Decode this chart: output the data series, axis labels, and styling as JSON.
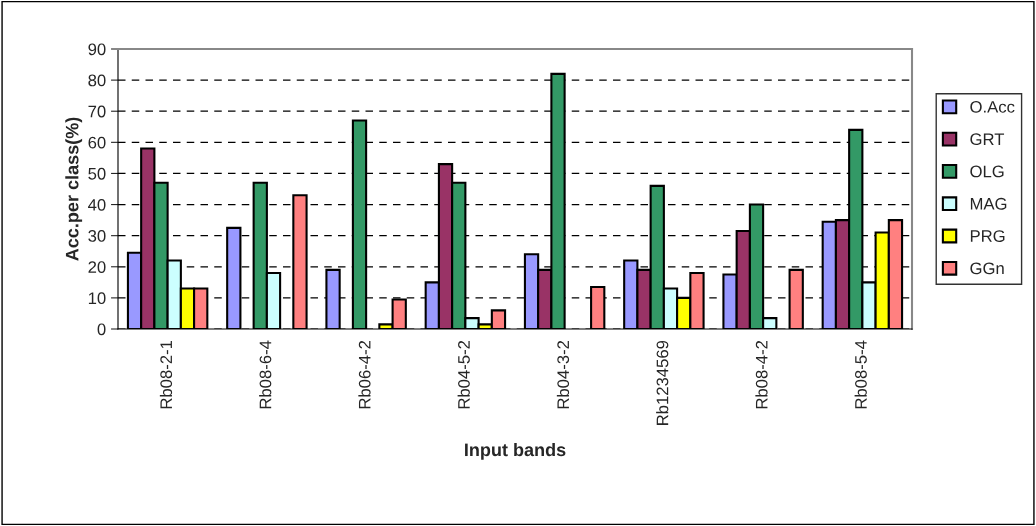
{
  "chart_data": {
    "type": "bar",
    "xlabel": "Input bands",
    "ylabel": "Acc.per class(%)",
    "categories": [
      "Rb08-2-1",
      "Rb08-6-4",
      "Rb06-4-2",
      "Rb04-5-2",
      "Rb04-3-2",
      "Rb1234569",
      "Rb08-4-2",
      "Rb08-5-4"
    ],
    "series": [
      {
        "name": "O.Acc",
        "color": "#9999ff",
        "values": [
          24.5,
          32.5,
          19,
          15,
          24,
          22,
          17.5,
          34.5
        ]
      },
      {
        "name": "GRT",
        "color": "#993366",
        "values": [
          58,
          null,
          null,
          53,
          19,
          19,
          31.5,
          35
        ]
      },
      {
        "name": "OLG",
        "color": "#339966",
        "values": [
          47,
          47,
          67,
          47,
          82,
          46,
          40,
          64
        ]
      },
      {
        "name": "MAG",
        "color": "#ccffff",
        "values": [
          22,
          18,
          null,
          3.5,
          null,
          13,
          3.5,
          15
        ]
      },
      {
        "name": "PRG",
        "color": "#ffff00",
        "values": [
          13,
          null,
          1.5,
          1.5,
          null,
          10,
          null,
          31
        ]
      },
      {
        "name": "GGn",
        "color": "#ff8080",
        "values": [
          13,
          43,
          9.5,
          6,
          13.5,
          18,
          19,
          35
        ]
      }
    ],
    "ylim": [
      0,
      90
    ],
    "yticks": [
      0,
      10,
      20,
      30,
      40,
      50,
      60,
      70,
      80,
      90
    ],
    "grid": "y",
    "legend": "right"
  }
}
